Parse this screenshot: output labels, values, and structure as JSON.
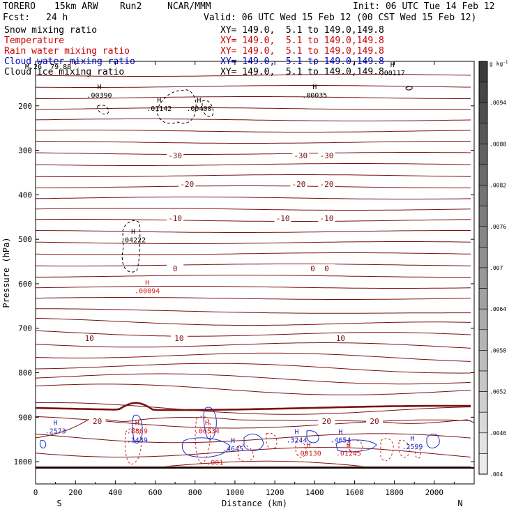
{
  "header": {
    "model": "TORERO",
    "resolution": "15km ARW",
    "run": "Run2",
    "org": "NCAR/MMM",
    "init": "Init: 06 UTC Tue 14 Feb 12",
    "fcst_label": "Fcst:",
    "fcst_value": "24 h",
    "valid": "Valid: 06 UTC Wed 15 Feb 12 (00 CST Wed 15 Feb 12)"
  },
  "fields": [
    {
      "name": "Snow mixing ratio",
      "xy": "XY= 149.0,  5.1 to 149.0,149.8",
      "name_color": "#000000",
      "xy_color": "#000000"
    },
    {
      "name": "Temperature",
      "xy": "XY= 149.0,  5.1 to 149.0,149.8",
      "name_color": "#cc0000",
      "xy_color": "#cc0000"
    },
    {
      "name": "Rain water mixing ratio",
      "xy": "XY= 149.0,  5.1 to 149.0,149.8",
      "name_color": "#cc0000",
      "xy_color": "#cc0000"
    },
    {
      "name": "Cloud water mixing ratio",
      "xy": "XY= 149.0,  5.1 to 149.0,149.8",
      "name_color": "#0000cc",
      "xy_color": "#0000cc"
    },
    {
      "name": "Cloud ice mixing ratio",
      "xy": "XY= 149.0,  5.1 to 149.0,149.8",
      "name_color": "#000000",
      "xy_color": "#000000"
    }
  ],
  "overlap_label": "M.26  79.88",
  "chart_data": {
    "type": "contour-cross-section",
    "xlabel": "Distance (km)",
    "ylabel": "Pressure (hPa)",
    "xlim": [
      0,
      2200
    ],
    "ylim": [
      1050,
      100
    ],
    "x_ticks": [
      0,
      200,
      400,
      600,
      800,
      1000,
      1200,
      1400,
      1600,
      1800,
      2000
    ],
    "y_ticks": [
      200,
      300,
      400,
      500,
      600,
      700,
      800,
      900,
      1000
    ],
    "left_end_label": "S",
    "right_end_label": "N",
    "colorbar": {
      "units": "g kg",
      "units_exp": "-1",
      "ticks": [
        ".0094",
        ".0088",
        ".0082",
        ".0076",
        ".007",
        ".0064",
        ".0058",
        ".0052",
        ".0046",
        ".004"
      ],
      "levels": 20
    },
    "temperature_isotherms": [
      {
        "label": "-30",
        "x": [
          700,
          1330,
          1460
        ]
      },
      {
        "label": "-20",
        "x": [
          760,
          1320,
          1460
        ]
      },
      {
        "label": "-10",
        "x": [
          700,
          1240,
          1460
        ]
      },
      {
        "label": "0",
        "x": [
          700,
          1390,
          1460
        ]
      },
      {
        "label": "10",
        "x": [
          270,
          720,
          1530
        ]
      },
      {
        "label": "20",
        "x": [
          310,
          1460,
          1700
        ]
      }
    ],
    "maxima": [
      {
        "field": "cloud ice",
        "label": "H",
        "value": ".00390",
        "x": 320,
        "p": 180
      },
      {
        "field": "cloud ice",
        "label": "H",
        "value": ".01142",
        "x": 620,
        "p": 210
      },
      {
        "field": "cloud ice",
        "label": "H",
        "value": ".00400",
        "x": 820,
        "p": 210
      },
      {
        "field": "cloud ice",
        "label": "H",
        "value": ".00035",
        "x": 1400,
        "p": 180
      },
      {
        "field": "cloud ice",
        "label": "H",
        "value": ".00117",
        "x": 1790,
        "p": 130
      },
      {
        "field": "cloud ice",
        "label": "H",
        "value": ".04222",
        "x": 490,
        "p": 505
      },
      {
        "field": "rain water",
        "label": "H",
        "value": ".00094",
        "x": 560,
        "p": 620
      },
      {
        "field": "cloud water",
        "label": "H",
        "value": ".2573",
        "x": 100,
        "p": 935
      },
      {
        "field": "rain water",
        "label": "H",
        "value": ".8869",
        "x": 510,
        "p": 935
      },
      {
        "field": "cloud water",
        "label": "",
        "value": ".1439",
        "x": 510,
        "p": 955
      },
      {
        "field": "rain water",
        "label": "H",
        "value": ".06534",
        "x": 860,
        "p": 935
      },
      {
        "field": "cloud water",
        "label": "H",
        "value": ".4645",
        "x": 990,
        "p": 975
      },
      {
        "field": "cloud water",
        "label": "H",
        "value": ".3244",
        "x": 1310,
        "p": 955
      },
      {
        "field": "rain water",
        "label": "H",
        "value": ".00130",
        "x": 1370,
        "p": 985
      },
      {
        "field": "cloud water",
        "label": "H",
        "value": ".4654",
        "x": 1530,
        "p": 955
      },
      {
        "field": "rain water",
        "label": "H",
        "value": ".01245",
        "x": 1570,
        "p": 985
      },
      {
        "field": "cloud water",
        "label": "H",
        "value": ".2599",
        "x": 1890,
        "p": 970
      },
      {
        "field": "rain water",
        "label": "",
        "value": ".001",
        "x": 900,
        "p": 1005
      }
    ]
  },
  "colors": {
    "temperature": "#7a1010",
    "rain": "#d41c1c",
    "cloud_water": "#2030c8",
    "cloud_ice": "#000000"
  }
}
